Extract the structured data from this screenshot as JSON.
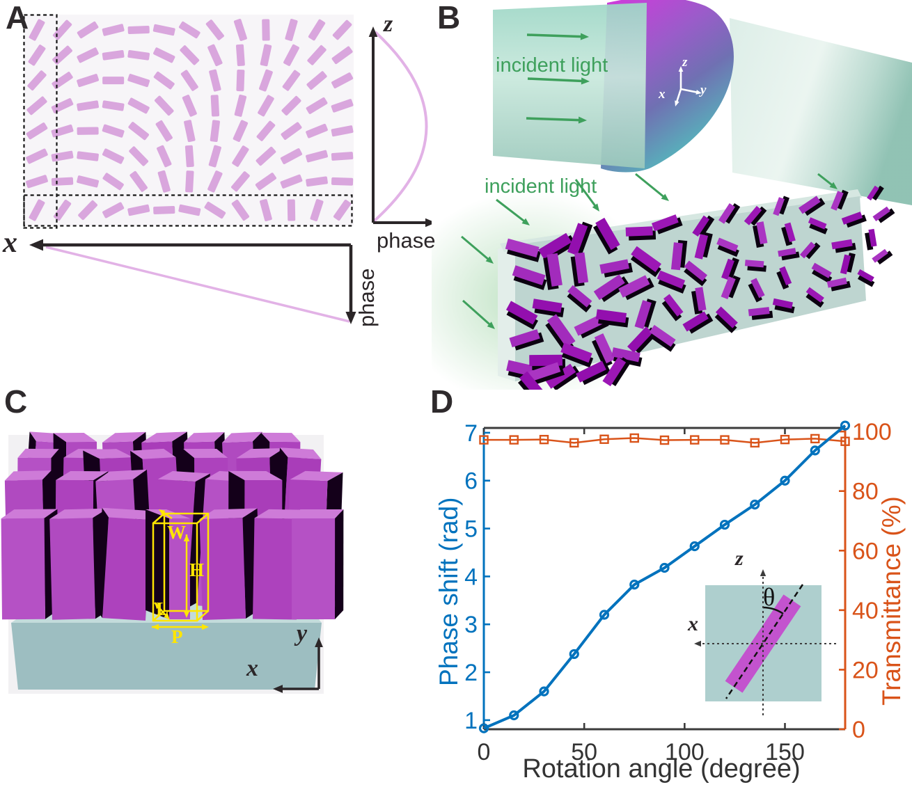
{
  "panel_a": {
    "letter": "A",
    "x_axis_label": "x",
    "z_axis_label": "z",
    "phase_label_horizontal": "phase",
    "phase_label_vertical": "phase",
    "rod_color": "#d9a6dd",
    "rod_angles_deg": [
      [
        62,
        48,
        32,
        14,
        2,
        -12,
        -32,
        -52,
        -72,
        -89,
        74,
        58,
        47
      ],
      [
        56,
        42,
        26,
        8,
        -8,
        -26,
        -46,
        -66,
        -86,
        78,
        62,
        48,
        36
      ],
      [
        48,
        34,
        18,
        0,
        -18,
        -36,
        -56,
        -76,
        88,
        70,
        54,
        40,
        28
      ],
      [
        40,
        25,
        9,
        -9,
        -28,
        -47,
        -67,
        -87,
        76,
        60,
        45,
        31,
        19
      ],
      [
        32,
        17,
        1,
        -18,
        -38,
        -58,
        -78,
        83,
        66,
        50,
        36,
        22,
        11
      ],
      [
        25,
        10,
        -7,
        -26,
        -46,
        -66,
        -86,
        74,
        58,
        42,
        28,
        15,
        4
      ],
      [
        18,
        3,
        -14,
        -34,
        -54,
        -74,
        87,
        66,
        50,
        35,
        21,
        8,
        -2
      ]
    ],
    "bottom_row_angles_deg": [
      62,
      55,
      46,
      28,
      12,
      2,
      -12,
      -32,
      -55,
      -75,
      -89,
      72,
      55
    ]
  },
  "panel_b": {
    "letter": "B",
    "incident_light_top": "incident light",
    "incident_light_bottom": "incident light",
    "axis_x": "x",
    "axis_y": "y",
    "axis_z": "z",
    "arrow_color": "#3ea05c",
    "fin_color": "#9c17b5",
    "slab_color": "#bed5d0"
  },
  "panel_c": {
    "letter": "C",
    "width_label": "W",
    "height_label": "H",
    "length_label": "L",
    "period_label": "P",
    "axis_x": "x",
    "axis_y": "y",
    "pillar_color": "#b04ac0",
    "substrate_top_color": "#c3dbdb",
    "substrate_front_color": "#9dbec1",
    "annotation_color": "#ffe600"
  },
  "panel_d": {
    "letter": "D",
    "inset": {
      "theta_label": "θ",
      "axis_x": "x",
      "axis_z": "z",
      "cell_color": "#aecfce",
      "rod_color": "#c353ce"
    }
  },
  "chart_data": {
    "type": "line",
    "x": [
      0,
      15,
      30,
      45,
      60,
      75,
      90,
      105,
      120,
      135,
      150,
      165,
      180
    ],
    "series": [
      {
        "name": "Phase shift",
        "axis": "left",
        "color": "#0072bd",
        "marker": "circle",
        "values": [
          0.83,
          1.1,
          1.6,
          2.38,
          3.2,
          3.83,
          4.18,
          4.63,
          5.08,
          5.5,
          6.0,
          6.63,
          7.15
        ]
      },
      {
        "name": "Transmittance",
        "axis": "right",
        "color": "#d95319",
        "marker": "square",
        "values": [
          97.2,
          97.2,
          97.3,
          96.2,
          97.4,
          97.8,
          97.1,
          97.2,
          97.2,
          96.2,
          97.3,
          97.6,
          96.7
        ]
      }
    ],
    "xlabel": "Rotation angle (degree)",
    "ylabel_left": "Phase shift (rad)",
    "ylabel_right": "Transmittance (%)",
    "xticks": [
      0,
      50,
      100,
      150
    ],
    "yticks_left": [
      1,
      2,
      3,
      4,
      5,
      6,
      7
    ],
    "yticks_right": [
      0,
      20,
      40,
      60,
      80,
      100
    ],
    "xlim": [
      0,
      180
    ],
    "ylim_left": [
      0.81,
      7.1
    ],
    "ylim_right": [
      0,
      101.2
    ],
    "grid": false,
    "legend": null
  }
}
